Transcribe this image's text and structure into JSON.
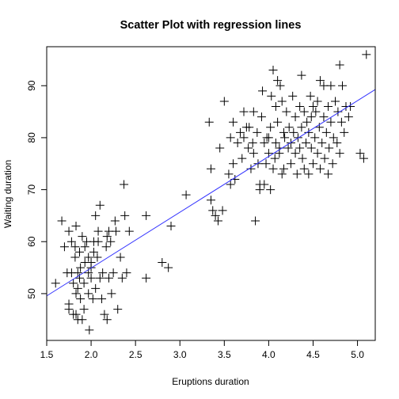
{
  "chart_data": {
    "type": "scatter",
    "title": "Scatter Plot with regression lines",
    "xlabel": "Eruptions duration",
    "ylabel": "Waiting duration",
    "xlim": [
      1.5,
      5.2
    ],
    "ylim": [
      41.0,
      97.5
    ],
    "x_ticks": [
      1.5,
      2.0,
      2.5,
      3.0,
      3.5,
      4.0,
      4.5,
      5.0
    ],
    "x_tick_labels": [
      "1.5",
      "2.0",
      "2.5",
      "3.0",
      "3.5",
      "4.0",
      "4.5",
      "5.0"
    ],
    "y_ticks": [
      50,
      60,
      70,
      80,
      90
    ],
    "y_tick_labels": [
      "50",
      "60",
      "70",
      "80",
      "90"
    ],
    "grid": false,
    "marker": "plus",
    "point_color": "#000000",
    "line_color": "#3333ff",
    "regression": {
      "intercept": 33.47,
      "slope": 10.73
    },
    "points": [
      [
        1.6,
        52
      ],
      [
        1.67,
        64
      ],
      [
        1.7,
        59
      ],
      [
        1.73,
        54
      ],
      [
        1.75,
        48
      ],
      [
        1.75,
        47
      ],
      [
        1.75,
        62
      ],
      [
        1.78,
        60
      ],
      [
        1.78,
        54
      ],
      [
        1.8,
        46
      ],
      [
        1.8,
        52
      ],
      [
        1.82,
        59
      ],
      [
        1.82,
        57
      ],
      [
        1.83,
        50
      ],
      [
        1.83,
        46
      ],
      [
        1.83,
        63
      ],
      [
        1.85,
        54
      ],
      [
        1.85,
        51
      ],
      [
        1.85,
        45
      ],
      [
        1.87,
        53
      ],
      [
        1.87,
        58
      ],
      [
        1.88,
        49
      ],
      [
        1.88,
        55
      ],
      [
        1.9,
        45
      ],
      [
        1.9,
        61
      ],
      [
        1.92,
        52
      ],
      [
        1.92,
        47
      ],
      [
        1.93,
        56
      ],
      [
        1.93,
        59
      ],
      [
        1.95,
        60
      ],
      [
        1.97,
        54
      ],
      [
        1.97,
        57
      ],
      [
        1.97,
        50
      ],
      [
        1.98,
        43
      ],
      [
        2.0,
        56
      ],
      [
        2.0,
        55
      ],
      [
        2.0,
        53
      ],
      [
        2.02,
        49
      ],
      [
        2.03,
        60
      ],
      [
        2.03,
        58
      ],
      [
        2.05,
        65
      ],
      [
        2.05,
        51
      ],
      [
        2.07,
        57
      ],
      [
        2.08,
        62
      ],
      [
        2.08,
        60
      ],
      [
        2.1,
        67
      ],
      [
        2.1,
        53
      ],
      [
        2.12,
        49
      ],
      [
        2.13,
        54
      ],
      [
        2.15,
        46
      ],
      [
        2.17,
        59
      ],
      [
        2.18,
        61
      ],
      [
        2.18,
        45
      ],
      [
        2.2,
        62
      ],
      [
        2.2,
        53
      ],
      [
        2.22,
        60
      ],
      [
        2.23,
        50
      ],
      [
        2.25,
        54
      ],
      [
        2.27,
        64
      ],
      [
        2.28,
        62
      ],
      [
        2.3,
        47
      ],
      [
        2.33,
        57
      ],
      [
        2.35,
        53
      ],
      [
        2.37,
        71
      ],
      [
        2.38,
        65
      ],
      [
        2.4,
        54
      ],
      [
        2.43,
        62
      ],
      [
        2.62,
        65
      ],
      [
        2.62,
        53
      ],
      [
        2.8,
        56
      ],
      [
        2.87,
        55
      ],
      [
        2.9,
        63
      ],
      [
        3.07,
        69
      ],
      [
        3.33,
        83
      ],
      [
        3.35,
        74
      ],
      [
        3.35,
        68
      ],
      [
        3.37,
        66
      ],
      [
        3.4,
        65
      ],
      [
        3.43,
        64
      ],
      [
        3.45,
        78
      ],
      [
        3.48,
        66
      ],
      [
        3.5,
        87
      ],
      [
        3.55,
        73
      ],
      [
        3.57,
        71
      ],
      [
        3.57,
        80
      ],
      [
        3.6,
        83
      ],
      [
        3.6,
        75
      ],
      [
        3.62,
        72
      ],
      [
        3.65,
        79
      ],
      [
        3.68,
        81
      ],
      [
        3.7,
        76
      ],
      [
        3.72,
        80
      ],
      [
        3.72,
        85
      ],
      [
        3.75,
        82
      ],
      [
        3.77,
        78
      ],
      [
        3.78,
        82
      ],
      [
        3.8,
        74
      ],
      [
        3.82,
        79
      ],
      [
        3.83,
        77
      ],
      [
        3.83,
        85
      ],
      [
        3.85,
        64
      ],
      [
        3.87,
        81
      ],
      [
        3.88,
        75
      ],
      [
        3.9,
        71
      ],
      [
        3.9,
        70
      ],
      [
        3.92,
        84
      ],
      [
        3.93,
        89
      ],
      [
        3.95,
        79
      ],
      [
        3.95,
        71
      ],
      [
        3.97,
        75
      ],
      [
        3.98,
        80
      ],
      [
        4.0,
        77
      ],
      [
        4.0,
        80
      ],
      [
        4.02,
        70
      ],
      [
        4.02,
        82
      ],
      [
        4.03,
        88
      ],
      [
        4.05,
        74
      ],
      [
        4.05,
        93
      ],
      [
        4.07,
        76
      ],
      [
        4.08,
        79
      ],
      [
        4.08,
        86
      ],
      [
        4.1,
        83
      ],
      [
        4.1,
        91
      ],
      [
        4.12,
        77
      ],
      [
        4.12,
        78
      ],
      [
        4.13,
        90
      ],
      [
        4.15,
        73
      ],
      [
        4.15,
        87
      ],
      [
        4.17,
        81
      ],
      [
        4.17,
        74
      ],
      [
        4.18,
        80
      ],
      [
        4.2,
        85
      ],
      [
        4.22,
        78
      ],
      [
        4.23,
        82
      ],
      [
        4.25,
        75
      ],
      [
        4.25,
        79
      ],
      [
        4.27,
        88
      ],
      [
        4.28,
        81
      ],
      [
        4.3,
        77
      ],
      [
        4.3,
        84
      ],
      [
        4.32,
        73
      ],
      [
        4.33,
        80
      ],
      [
        4.35,
        86
      ],
      [
        4.35,
        78
      ],
      [
        4.37,
        92
      ],
      [
        4.37,
        82
      ],
      [
        4.38,
        76
      ],
      [
        4.4,
        85
      ],
      [
        4.4,
        74
      ],
      [
        4.42,
        79
      ],
      [
        4.43,
        83
      ],
      [
        4.45,
        81
      ],
      [
        4.45,
        73
      ],
      [
        4.47,
        88
      ],
      [
        4.48,
        84
      ],
      [
        4.48,
        78
      ],
      [
        4.5,
        86
      ],
      [
        4.5,
        75
      ],
      [
        4.52,
        80
      ],
      [
        4.53,
        85
      ],
      [
        4.55,
        77
      ],
      [
        4.55,
        87
      ],
      [
        4.57,
        82
      ],
      [
        4.58,
        74
      ],
      [
        4.58,
        91
      ],
      [
        4.6,
        79
      ],
      [
        4.62,
        90
      ],
      [
        4.62,
        84
      ],
      [
        4.63,
        76
      ],
      [
        4.65,
        81
      ],
      [
        4.67,
        86
      ],
      [
        4.67,
        73
      ],
      [
        4.68,
        78
      ],
      [
        4.7,
        90
      ],
      [
        4.7,
        83
      ],
      [
        4.72,
        75
      ],
      [
        4.73,
        80
      ],
      [
        4.75,
        87
      ],
      [
        4.77,
        79
      ],
      [
        4.78,
        85
      ],
      [
        4.8,
        94
      ],
      [
        4.8,
        77
      ],
      [
        4.82,
        83
      ],
      [
        4.83,
        90
      ],
      [
        4.85,
        81
      ],
      [
        4.87,
        86
      ],
      [
        4.9,
        84
      ],
      [
        4.92,
        86
      ],
      [
        5.03,
        77
      ],
      [
        5.07,
        76
      ],
      [
        5.1,
        96
      ]
    ]
  }
}
